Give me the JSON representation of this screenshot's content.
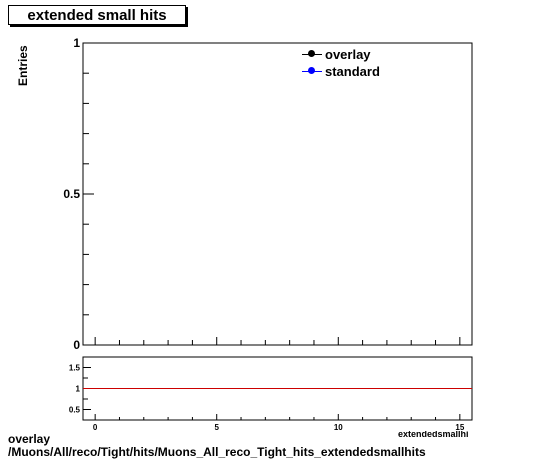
{
  "title": "extended small hits",
  "ylabel": "Entries",
  "legend": [
    {
      "label": "overlay",
      "color": "#000000"
    },
    {
      "label": "standard",
      "color": "#0000ff"
    }
  ],
  "footer": {
    "line1": "overlay",
    "line2": "/Muons/All/reco/Tight/hits/Muons_All_reco_Tight_hits_extendedsmallhits"
  },
  "xaxis_label_fragment": "extendedsmallhits",
  "ratio_line_color": "#cc0000",
  "chart_data": [
    {
      "type": "line",
      "title": "extended small hits",
      "xlabel": "",
      "ylabel": "Entries",
      "xlim": [
        -0.5,
        15.5
      ],
      "ylim": [
        0,
        1
      ],
      "yticks": [
        "0",
        "0.5",
        "1"
      ],
      "xticks": [
        "0",
        "5",
        "10",
        "15"
      ],
      "series": [
        {
          "name": "overlay",
          "x": [],
          "y": []
        },
        {
          "name": "standard",
          "x": [],
          "y": []
        }
      ]
    },
    {
      "type": "line",
      "xlim": [
        -0.5,
        15.5
      ],
      "ylim": [
        0.25,
        1.75
      ],
      "yticks": [
        "0.5",
        "1",
        "1.5"
      ],
      "xticks": [
        "0",
        "5",
        "10",
        "15"
      ],
      "reference_line": 1
    }
  ]
}
